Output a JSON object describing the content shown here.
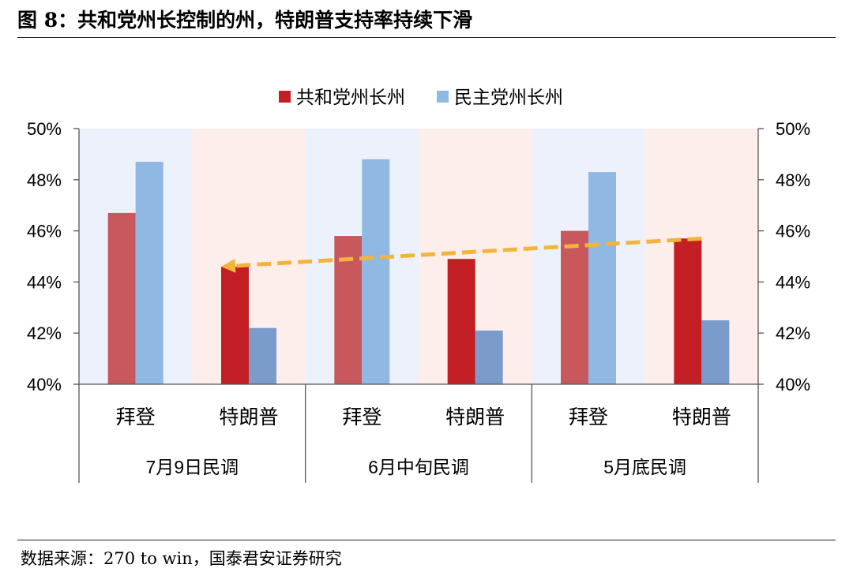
{
  "figure": {
    "title": "图 8：共和党州长控制的州，特朗普支持率持续下滑",
    "source": "数据来源：270 to win，国泰君安证券研究"
  },
  "colors": {
    "republican": "#c8585c",
    "republican_dark": "#c21e23",
    "democrat": "#8fb9e3",
    "democrat_dark": "#7b9ccb",
    "band_blue": "#edf1fb",
    "band_pink": "#fdeeec",
    "arrow": "#f2b53c"
  },
  "chart_data": {
    "type": "bar",
    "title": "",
    "ylabel": "",
    "ylim": [
      40,
      50
    ],
    "yticks": [
      "40%",
      "42%",
      "44%",
      "46%",
      "48%",
      "50%"
    ],
    "y_unit": "%",
    "legend": {
      "position": "top-center",
      "entries": [
        "共和党州长州",
        "民主党州长州"
      ]
    },
    "grid": false,
    "groups": [
      "7月9日民调",
      "6月中旬民调",
      "5月底民调"
    ],
    "subcategories": [
      "拜登",
      "特朗普"
    ],
    "series": [
      {
        "name": "共和党州长州",
        "values": [
          [
            46.7,
            44.6
          ],
          [
            45.8,
            44.9
          ],
          [
            46.0,
            45.7
          ]
        ]
      },
      {
        "name": "民主党州长州",
        "values": [
          [
            48.7,
            42.2
          ],
          [
            48.8,
            42.1
          ],
          [
            48.3,
            42.5
          ]
        ]
      }
    ],
    "annotation": {
      "type": "dashed-arrow",
      "from": {
        "group": "5月底民调",
        "sub": "特朗普",
        "value": 45.7
      },
      "to": {
        "group": "7月9日民调",
        "sub": "特朗普",
        "value": 44.6
      }
    }
  }
}
